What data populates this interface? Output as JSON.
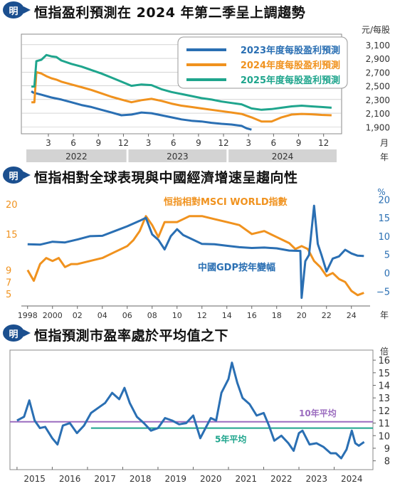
{
  "badge_label": "明",
  "chart_data": [
    {
      "type": "line",
      "title": "恒指盈利預測在 2024 年第二季呈上調趨勢",
      "y_unit": "元/每股",
      "x_unit": "月",
      "x_unit2": "年",
      "ylim": [
        1800,
        3150
      ],
      "y_ticks": [
        "3,100",
        "2,900",
        "2,700",
        "2,500",
        "2,300",
        "2,100",
        "1,900"
      ],
      "y_tick_values": [
        3100,
        2900,
        2700,
        2500,
        2300,
        2100,
        1900
      ],
      "x_ticks": [
        "3",
        "6",
        "9",
        "12",
        "3",
        "6",
        "9",
        "12",
        "3",
        "6",
        "9",
        "12"
      ],
      "x_tick_values": [
        2022.17,
        2022.42,
        2022.67,
        2022.92,
        2023.17,
        2023.42,
        2023.67,
        2023.92,
        2024.17,
        2024.42,
        2024.67,
        2024.92
      ],
      "xlim": [
        2021.9,
        2025.1
      ],
      "years": [
        "2022",
        "2023",
        "2024"
      ],
      "legend_position": "top-right",
      "series": [
        {
          "name": "2023年度每股盈利預測",
          "color": "#2a6fb3",
          "x": [
            2022.0,
            2022.02,
            2022.1,
            2022.2,
            2022.3,
            2022.4,
            2022.5,
            2022.6,
            2022.7,
            2022.8,
            2022.9,
            2023.0,
            2023.1,
            2023.2,
            2023.3,
            2023.4,
            2023.5,
            2023.6,
            2023.7,
            2023.8,
            2023.9,
            2024.0,
            2024.1,
            2024.15,
            2024.2
          ],
          "y": [
            2420,
            2400,
            2370,
            2330,
            2300,
            2260,
            2220,
            2190,
            2150,
            2110,
            2070,
            2080,
            2110,
            2100,
            2070,
            2040,
            2010,
            1990,
            1980,
            1960,
            1945,
            1935,
            1915,
            1880,
            1860
          ]
        },
        {
          "name": "2024年度每股盈利預測",
          "color": "#f0921e",
          "x": [
            2022.0,
            2022.03,
            2022.05,
            2022.1,
            2022.15,
            2022.2,
            2022.25,
            2022.3,
            2022.4,
            2022.5,
            2022.6,
            2022.7,
            2022.8,
            2022.9,
            2023.0,
            2023.1,
            2023.2,
            2023.3,
            2023.4,
            2023.5,
            2023.6,
            2023.7,
            2023.8,
            2023.9,
            2024.0,
            2024.1,
            2024.2,
            2024.3,
            2024.4,
            2024.5,
            2024.6,
            2024.7,
            2024.8,
            2024.9,
            2025.0
          ],
          "y": [
            2260,
            2260,
            2700,
            2680,
            2640,
            2610,
            2590,
            2560,
            2520,
            2480,
            2440,
            2390,
            2340,
            2300,
            2260,
            2290,
            2310,
            2280,
            2240,
            2210,
            2190,
            2170,
            2150,
            2130,
            2110,
            2090,
            2040,
            1980,
            1980,
            2040,
            2080,
            2090,
            2085,
            2075,
            2070
          ]
        },
        {
          "name": "2025年度每股盈利預測",
          "color": "#1fa58d",
          "x": [
            2022.0,
            2022.03,
            2022.05,
            2022.1,
            2022.15,
            2022.2,
            2022.25,
            2022.3,
            2022.4,
            2022.5,
            2022.6,
            2022.7,
            2022.8,
            2022.9,
            2023.0,
            2023.1,
            2023.2,
            2023.3,
            2023.4,
            2023.5,
            2023.6,
            2023.7,
            2023.8,
            2023.9,
            2024.0,
            2024.1,
            2024.2,
            2024.3,
            2024.4,
            2024.5,
            2024.6,
            2024.7,
            2024.8,
            2024.9,
            2025.0
          ],
          "y": [
            2490,
            2490,
            2860,
            2880,
            2950,
            2930,
            2920,
            2870,
            2820,
            2780,
            2730,
            2680,
            2620,
            2560,
            2500,
            2520,
            2510,
            2450,
            2410,
            2380,
            2350,
            2320,
            2300,
            2270,
            2250,
            2230,
            2170,
            2150,
            2160,
            2180,
            2200,
            2210,
            2200,
            2190,
            2180
          ]
        }
      ]
    },
    {
      "type": "line",
      "title": "恒指相對全球表現與中國經濟增速呈趨向性",
      "y_unit_right": "%",
      "x_unit": "年",
      "left_axis": {
        "ticks": [
          "20",
          "15",
          "9",
          "7",
          "5"
        ],
        "values": [
          20,
          15,
          9,
          7,
          5
        ],
        "color": "#f0921e",
        "ylim": [
          3,
          22
        ]
      },
      "right_axis": {
        "ticks": [
          "20",
          "15",
          "10",
          "5",
          "0",
          "−5"
        ],
        "values": [
          20,
          15,
          10,
          5,
          0,
          -5
        ],
        "color": "#2a6fb3",
        "ylim": [
          -9,
          22
        ]
      },
      "x_ticks": [
        "1998",
        "2000",
        "02",
        "04",
        "06",
        "08",
        "10",
        "12",
        "14",
        "16",
        "18",
        "20",
        "22",
        "24"
      ],
      "x_tick_values": [
        1998,
        2000,
        2002,
        2004,
        2006,
        2008,
        2010,
        2012,
        2014,
        2016,
        2018,
        2020,
        2022,
        2024
      ],
      "xlim": [
        1997.5,
        2025.5
      ],
      "series": [
        {
          "name": "恒指相對MSCI WORLD指數",
          "axis": "left",
          "color": "#f0921e",
          "x": [
            1998,
            1998.5,
            1999,
            1999.5,
            2000,
            2000.5,
            2001,
            2001.5,
            2002,
            2003,
            2004,
            2005,
            2006,
            2006.5,
            2007,
            2007.5,
            2008,
            2008.5,
            2009,
            2010,
            2011,
            2012,
            2013,
            2014,
            2015,
            2016,
            2017,
            2018,
            2019,
            2019.5,
            2020,
            2020.5,
            2021,
            2021.5,
            2022,
            2022.5,
            2023,
            2023.5,
            2024,
            2024.5,
            2025
          ],
          "y": [
            9,
            7.2,
            10,
            11,
            10.5,
            11,
            9.5,
            10,
            10,
            10.5,
            11,
            12,
            13,
            14,
            15.5,
            18,
            16.5,
            14.5,
            17,
            17,
            18,
            18,
            17.5,
            17,
            16.5,
            15,
            15.5,
            14.5,
            13.5,
            12.5,
            13,
            12.5,
            10.5,
            9.5,
            8,
            8.5,
            7.5,
            7,
            5.5,
            4.8,
            5.2
          ]
        },
        {
          "name": "中國GDP按年變幅",
          "axis": "right",
          "color": "#2a6fb3",
          "x": [
            1998,
            1999,
            2000,
            2001,
            2002,
            2003,
            2004,
            2005,
            2006,
            2007,
            2007.5,
            2008,
            2008.5,
            2009,
            2009.5,
            2010,
            2010.5,
            2011,
            2012,
            2013,
            2014,
            2015,
            2016,
            2017,
            2018,
            2019,
            2019.9,
            2020.0,
            2020.3,
            2020.6,
            2021.0,
            2021.3,
            2021.6,
            2022,
            2022.5,
            2023,
            2023.5,
            2024,
            2024.5,
            2025
          ],
          "y": [
            7.8,
            7.7,
            8.5,
            8.3,
            9.1,
            10,
            10.1,
            11.4,
            12.7,
            14.2,
            15,
            10.5,
            9,
            6.4,
            10,
            11.9,
            10.3,
            9.5,
            7.9,
            7.8,
            7.4,
            7,
            6.8,
            6.9,
            6.7,
            6.1,
            6,
            -6.8,
            3.2,
            4.9,
            18.3,
            7.9,
            4.9,
            0.4,
            3.9,
            4.5,
            6.3,
            5.3,
            4.7,
            4.6
          ]
        }
      ]
    },
    {
      "type": "line",
      "title": "恒指預測市盈率處於平均值之下",
      "y_unit": "倍",
      "ylim": [
        7.3,
        16.8
      ],
      "y_ticks": [
        "16",
        "15",
        "14",
        "13",
        "12",
        "11",
        "10",
        "9",
        "8"
      ],
      "y_tick_values": [
        16,
        15,
        14,
        13,
        12,
        11,
        10,
        9,
        8
      ],
      "x_ticks": [
        "2015",
        "2016",
        "2017",
        "2018",
        "2019",
        "2020",
        "2021",
        "2022",
        "2023",
        "2024"
      ],
      "xlim": [
        2014.8,
        2025.1
      ],
      "reference_lines": [
        {
          "label": "10年平均",
          "value": 11.1,
          "color": "#9b6cbf",
          "start": 2014.8
        },
        {
          "label": "5年平均",
          "value": 10.6,
          "color": "#1fa58d",
          "start": 2017.1
        }
      ],
      "series": [
        {
          "name": "恒指預測市盈率",
          "color": "#2a6fb3",
          "x": [
            2015.0,
            2015.2,
            2015.35,
            2015.5,
            2015.65,
            2015.8,
            2016.0,
            2016.15,
            2016.3,
            2016.5,
            2016.7,
            2016.9,
            2017.1,
            2017.3,
            2017.5,
            2017.7,
            2017.9,
            2018.05,
            2018.2,
            2018.4,
            2018.6,
            2018.8,
            2019.0,
            2019.2,
            2019.4,
            2019.6,
            2019.8,
            2020.0,
            2020.2,
            2020.35,
            2020.5,
            2020.65,
            2020.8,
            2021.0,
            2021.1,
            2021.25,
            2021.4,
            2021.6,
            2021.8,
            2022.0,
            2022.15,
            2022.3,
            2022.5,
            2022.7,
            2022.85,
            2023.0,
            2023.1,
            2023.3,
            2023.5,
            2023.7,
            2023.9,
            2024.05,
            2024.2,
            2024.35,
            2024.5,
            2024.6,
            2024.7,
            2024.85
          ],
          "y": [
            11.2,
            11.5,
            12.8,
            11.2,
            10.6,
            10.7,
            9.8,
            9.3,
            10.8,
            11,
            10.2,
            10.8,
            11.8,
            12.2,
            12.6,
            13.4,
            12.9,
            13.8,
            12.6,
            11.5,
            11,
            10.4,
            10.6,
            11.4,
            11.2,
            10.9,
            11,
            11.6,
            9.8,
            10.6,
            11.4,
            11.2,
            13.4,
            14.5,
            15.8,
            14.2,
            13,
            12.5,
            11.6,
            11.8,
            10.8,
            9.6,
            10,
            9.4,
            8.8,
            10.2,
            10.4,
            9.3,
            9.4,
            9.1,
            8.6,
            8.6,
            8.2,
            8.9,
            10.4,
            9.4,
            9.2,
            9.5
          ]
        }
      ]
    }
  ]
}
